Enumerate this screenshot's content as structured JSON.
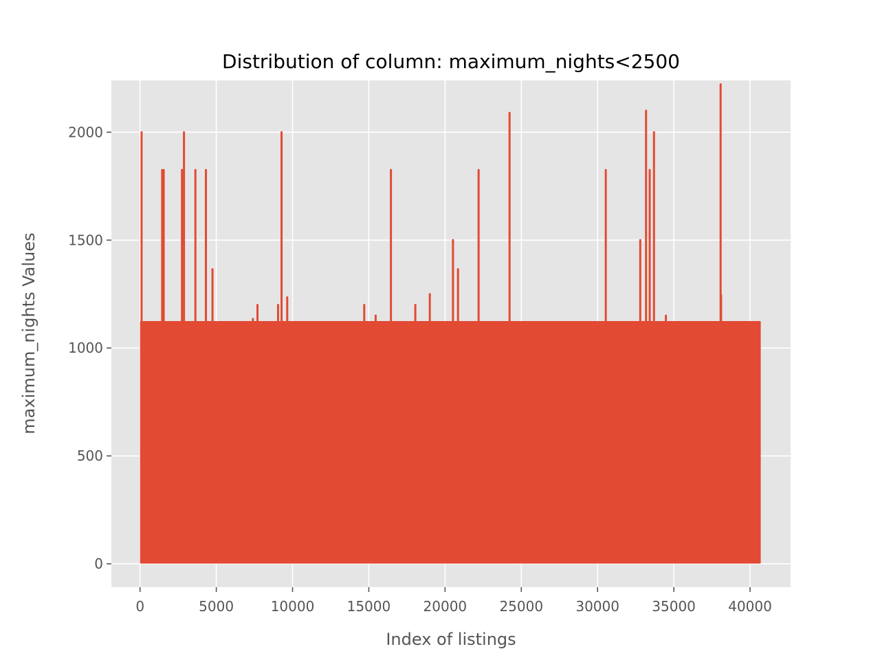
{
  "chart_data": {
    "type": "line",
    "title": "Distribution of column: maximum_nights<2500",
    "xlabel": "Index of listings",
    "ylabel": "maximum_nights Values",
    "xlim": [
      -1880,
      42660
    ],
    "ylim": [
      -108,
      2240
    ],
    "x_ticks": [
      0,
      5000,
      10000,
      15000,
      20000,
      25000,
      30000,
      35000,
      40000
    ],
    "x_tick_labels": [
      "0",
      "5000",
      "10000",
      "15000",
      "20000",
      "25000",
      "30000",
      "35000",
      "40000"
    ],
    "y_ticks": [
      0,
      500,
      1000,
      1500,
      2000
    ],
    "y_tick_labels": [
      "0",
      "500",
      "1000",
      "1500",
      "2000"
    ],
    "grid": true,
    "legend": "none",
    "colors": {
      "line": "#E24A33",
      "axes_background": "#E5E5E5",
      "grid": "#FFFFFF",
      "tick_text": "#555555",
      "title_text": "#000000"
    },
    "series": [
      {
        "x_range": [
          0,
          40700
        ],
        "dense_band": {
          "min": 1,
          "max": 1125
        },
        "spikes": [
          {
            "x": 100,
            "y": 2000
          },
          {
            "x": 1450,
            "y": 1825
          },
          {
            "x": 1550,
            "y": 1825
          },
          {
            "x": 2750,
            "y": 1825
          },
          {
            "x": 2880,
            "y": 2000
          },
          {
            "x": 3630,
            "y": 1825
          },
          {
            "x": 4320,
            "y": 1825
          },
          {
            "x": 4750,
            "y": 1365
          },
          {
            "x": 7400,
            "y": 1135
          },
          {
            "x": 7700,
            "y": 1200
          },
          {
            "x": 9050,
            "y": 1200
          },
          {
            "x": 9280,
            "y": 2000
          },
          {
            "x": 9650,
            "y": 1235
          },
          {
            "x": 14700,
            "y": 1200
          },
          {
            "x": 15450,
            "y": 1150
          },
          {
            "x": 16450,
            "y": 1825
          },
          {
            "x": 18050,
            "y": 1200
          },
          {
            "x": 19000,
            "y": 1250
          },
          {
            "x": 20520,
            "y": 1500
          },
          {
            "x": 20850,
            "y": 1365
          },
          {
            "x": 22200,
            "y": 1825
          },
          {
            "x": 24230,
            "y": 2090
          },
          {
            "x": 30540,
            "y": 1825
          },
          {
            "x": 32800,
            "y": 1500
          },
          {
            "x": 33180,
            "y": 2100
          },
          {
            "x": 33420,
            "y": 1825
          },
          {
            "x": 33700,
            "y": 2000
          },
          {
            "x": 34480,
            "y": 1150
          },
          {
            "x": 38070,
            "y": 2222
          },
          {
            "x": 38100,
            "y": 1245
          }
        ]
      }
    ]
  }
}
